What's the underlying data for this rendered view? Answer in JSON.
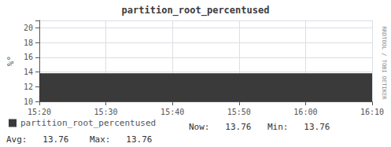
{
  "chart_data": {
    "type": "area",
    "title": "partition_root_percentused",
    "ylabel": "%°",
    "categories": [
      "15:20",
      "15:30",
      "15:40",
      "15:50",
      "16:00",
      "16:10"
    ],
    "series": [
      {
        "name": "partition_root_percentused",
        "color": "#3a3a3a",
        "values": [
          13.76,
          13.76,
          13.76,
          13.76,
          13.76,
          13.76
        ]
      }
    ],
    "ylim": [
      10,
      21
    ],
    "yticks": [
      10,
      12,
      14,
      16,
      18,
      20
    ],
    "grid": true,
    "legend": "bottom left",
    "annotations": [
      "Now:   13.76",
      "Min:   13.76",
      "Avg:   13.76    Max:   13.76",
      "RRDTOOL / TOBI OETIKER"
    ]
  }
}
